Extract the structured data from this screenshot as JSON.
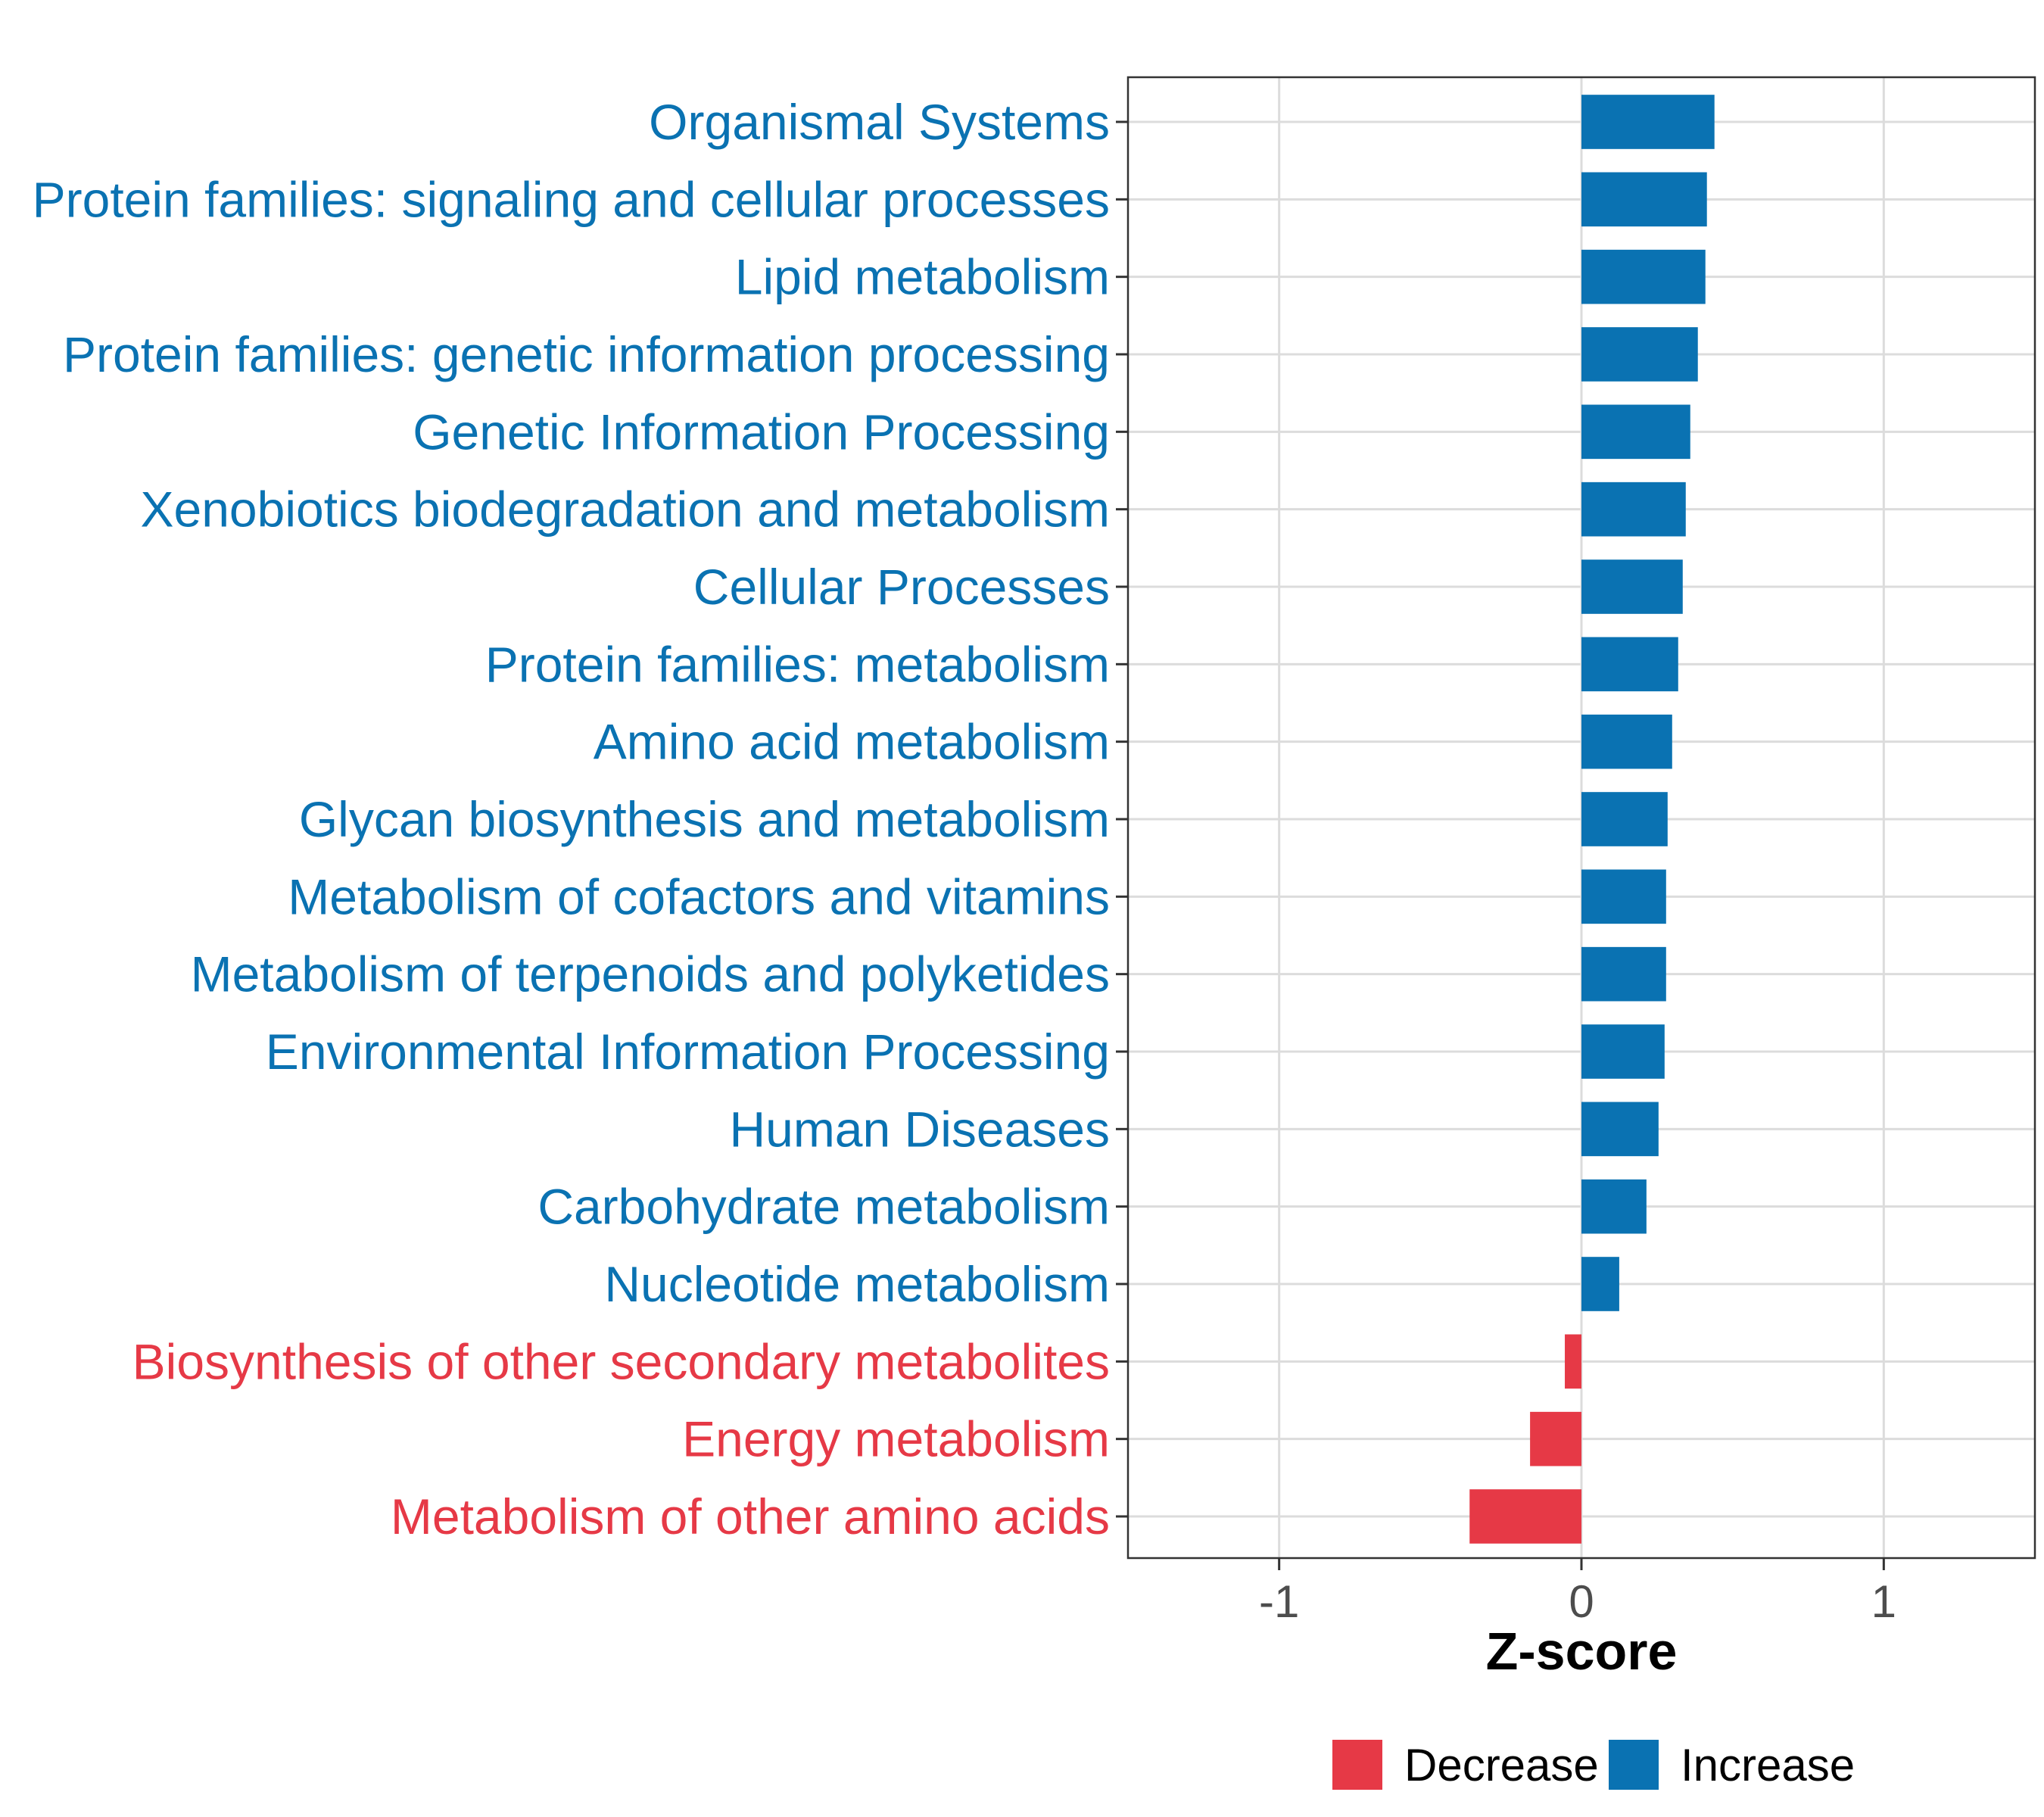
{
  "chart_data": {
    "type": "bar",
    "orientation": "horizontal",
    "xlabel": "Z-score",
    "ylabel": "",
    "xlim": [
      -1.5,
      1.5
    ],
    "x_ticks": [
      -1,
      0,
      1
    ],
    "x_tick_labels": [
      "-1",
      "0",
      "1"
    ],
    "grid": true,
    "legend_position": "bottom",
    "legend": [
      {
        "name": "Decrease",
        "color": "#E63946"
      },
      {
        "name": "Increase",
        "color": "#0A72B2"
      }
    ],
    "categories": [
      "Organismal Systems",
      "Protein families: signaling and cellular processes",
      "Lipid metabolism",
      "Protein families: genetic information processing",
      "Genetic Information Processing",
      "Xenobiotics biodegradation and metabolism",
      "Cellular Processes",
      "Protein families: metabolism",
      "Amino acid metabolism",
      "Glycan biosynthesis and metabolism",
      "Metabolism of cofactors and vitamins",
      "Metabolism of terpenoids and polyketides",
      "Environmental Information Processing",
      "Human Diseases",
      "Carbohydrate metabolism",
      "Nucleotide metabolism",
      "Biosynthesis of other secondary metabolites",
      "Energy metabolism",
      "Metabolism of other amino acids"
    ],
    "values": [
      0.44,
      0.415,
      0.41,
      0.385,
      0.36,
      0.345,
      0.335,
      0.32,
      0.3,
      0.285,
      0.28,
      0.28,
      0.275,
      0.255,
      0.215,
      0.125,
      -0.055,
      -0.17,
      -0.37
    ],
    "groups": [
      "Increase",
      "Increase",
      "Increase",
      "Increase",
      "Increase",
      "Increase",
      "Increase",
      "Increase",
      "Increase",
      "Increase",
      "Increase",
      "Increase",
      "Increase",
      "Increase",
      "Increase",
      "Increase",
      "Decrease",
      "Decrease",
      "Decrease"
    ]
  }
}
